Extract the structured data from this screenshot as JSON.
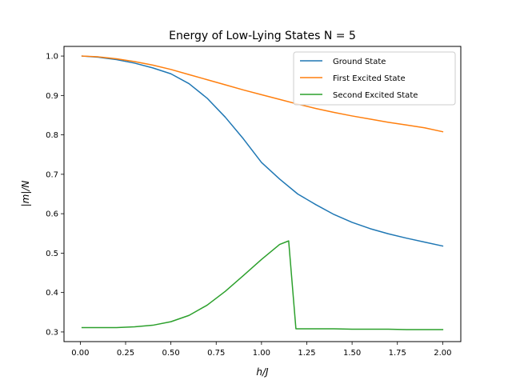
{
  "chart_data": {
    "type": "line",
    "title": "Energy of Low-Lying States N = 5",
    "xlabel": "h/J",
    "ylabel": "|m|/N",
    "xlim": [
      -0.09,
      2.1
    ],
    "ylim": [
      0.2755,
      1.0245
    ],
    "xticks": [
      0.0,
      0.25,
      0.5,
      0.75,
      1.0,
      1.25,
      1.5,
      1.75,
      2.0
    ],
    "xtick_labels": [
      "0.00",
      "0.25",
      "0.50",
      "0.75",
      "1.00",
      "1.25",
      "1.50",
      "1.75",
      "2.00"
    ],
    "yticks": [
      0.3,
      0.4,
      0.5,
      0.6,
      0.7,
      0.8,
      0.9,
      1.0
    ],
    "ytick_labels": [
      "0.3",
      "0.4",
      "0.5",
      "0.6",
      "0.7",
      "0.8",
      "0.9",
      "1.0"
    ],
    "grid": false,
    "legend_position": "top-right",
    "series": [
      {
        "name": "Ground State",
        "color": "#1f77b4",
        "x": [
          0.01,
          0.1,
          0.2,
          0.3,
          0.4,
          0.5,
          0.6,
          0.7,
          0.8,
          0.9,
          1.0,
          1.1,
          1.2,
          1.3,
          1.4,
          1.5,
          1.6,
          1.7,
          1.8,
          1.9,
          2.0
        ],
        "y": [
          1.0,
          0.997,
          0.991,
          0.982,
          0.97,
          0.955,
          0.93,
          0.893,
          0.845,
          0.79,
          0.73,
          0.688,
          0.65,
          0.623,
          0.598,
          0.578,
          0.562,
          0.549,
          0.538,
          0.528,
          0.518
        ]
      },
      {
        "name": "First Excited State",
        "color": "#ff7f0e",
        "x": [
          0.01,
          0.1,
          0.2,
          0.3,
          0.4,
          0.5,
          0.6,
          0.7,
          0.8,
          0.9,
          1.0,
          1.1,
          1.2,
          1.3,
          1.4,
          1.5,
          1.6,
          1.7,
          1.8,
          1.9,
          2.0
        ],
        "y": [
          1.0,
          0.998,
          0.993,
          0.986,
          0.977,
          0.966,
          0.953,
          0.94,
          0.927,
          0.914,
          0.902,
          0.89,
          0.878,
          0.867,
          0.857,
          0.848,
          0.84,
          0.832,
          0.825,
          0.818,
          0.808
        ]
      },
      {
        "name": "Second Excited State",
        "color": "#2ca02c",
        "x": [
          0.01,
          0.1,
          0.2,
          0.3,
          0.4,
          0.5,
          0.6,
          0.7,
          0.8,
          0.9,
          1.0,
          1.1,
          1.15,
          1.19,
          1.3,
          1.4,
          1.5,
          1.6,
          1.7,
          1.8,
          1.9,
          2.0
        ],
        "y": [
          0.311,
          0.311,
          0.311,
          0.313,
          0.317,
          0.326,
          0.342,
          0.368,
          0.403,
          0.443,
          0.484,
          0.522,
          0.531,
          0.308,
          0.308,
          0.308,
          0.307,
          0.307,
          0.307,
          0.306,
          0.306,
          0.306
        ]
      }
    ]
  }
}
